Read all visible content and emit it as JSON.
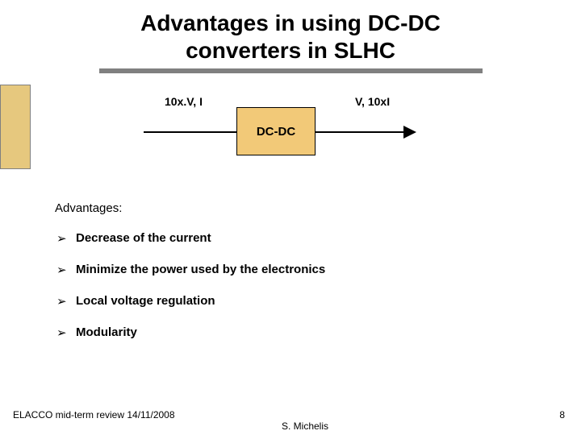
{
  "slide": {
    "title_line1": "Advantages in using DC-DC",
    "title_line2": "converters in SLHC",
    "underline_color": "#808080",
    "sidebar_color": "#e6c87e"
  },
  "diagram": {
    "input_label": "10x.V, I",
    "output_label": "V, 10xI",
    "box_label": "DC-DC",
    "box_fill": "#f2c978",
    "box_border": "#000000"
  },
  "content": {
    "heading": "Advantages:",
    "bullets": [
      "Decrease of the current",
      "Minimize the power  used by the electronics",
      "Local voltage regulation",
      "Modularity"
    ]
  },
  "footer": {
    "left": "ELACCO mid-term review 14/11/2008",
    "center": "S. Michelis",
    "page": "8"
  }
}
